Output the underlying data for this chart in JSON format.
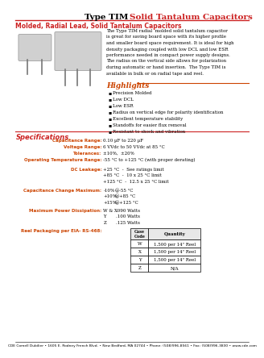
{
  "title_black": "Type TIM",
  "title_red": " Solid Tantalum Capacitors",
  "subtitle": "Molded, Radial Lead, Solid Tantalum Capacitors",
  "description": "The Type TIM radial  molded solid tantalum capacitor\nis great for saving board space with its higher profile\nand smaller board space requirement. It is ideal for high\ndensity packaging coupled with low DCL and low ESR\nperformance needed in compact power supply designs.\nThe radius on the vertical side allows for polarization\nduring automatic or hand insertion.  The Type TIM is\navailable in bulk or on radial tape and reel.",
  "highlights_title": "Highlights",
  "highlights": [
    "Precision Molded",
    "Low DCL",
    "Low ESR",
    "Radius on vertical edge for polarity identification",
    "Excellent temperature stability",
    "Standoffs for easier flux removal",
    "Resistant to shock and vibration"
  ],
  "spec_title": "Specifications",
  "spec_rows": [
    [
      "Capacitance Range:",
      "0.10 µF to 220 µF"
    ],
    [
      "Voltage Range:",
      "6 VVdc to 50 VVdc at 85 °C"
    ],
    [
      "Tolerances:",
      "±10%,  ±20%"
    ],
    [
      "Operating Temperature Range:",
      "-55 °C to +125 °C (with proper derating)"
    ]
  ],
  "dcl_title": "DC Leakage:",
  "dcl_rows": [
    "+25 °C  -  See ratings limit",
    "+85 °C  -  10 x 25 °C limit",
    "+125 °C  -  12.5 x 25 °C limit"
  ],
  "cap_change_title": "Capacitance Change Maximum:",
  "cap_change_rows": [
    [
      "-10%",
      "@",
      "-55 °C"
    ],
    [
      "+10%",
      "@",
      "+85 °C"
    ],
    [
      "+15%",
      "@",
      "+125 °C"
    ]
  ],
  "power_title": "Maximum Power Dissipation:",
  "power_rows": [
    [
      "W & X",
      ".090 Watts"
    ],
    [
      "Y",
      ".100 Watts"
    ],
    [
      "Z",
      ".125 Watts"
    ]
  ],
  "reel_title": "Reel Packaging per EIA- RS-468:",
  "table_headers": [
    "Case\nCode",
    "Quantity"
  ],
  "table_rows": [
    [
      "W",
      "1,500 per 14\" Reel"
    ],
    [
      "X",
      "1,500 per 14\" Reel"
    ],
    [
      "Y",
      "1,500 per 14\" Reel"
    ],
    [
      "Z",
      "N/A"
    ]
  ],
  "footer": "CDE Cornell Dubilier • 1605 E. Rodney French Blvd. • New Bedford, MA 02744 • Phone: (508)996-8561 • Fax: (508)996-3830 • www.cde.com",
  "red_color": "#cc2222",
  "orange_color": "#cc4400",
  "bg_color": "#ffffff",
  "text_color": "#000000",
  "watermark_color": "#c8c8d8"
}
